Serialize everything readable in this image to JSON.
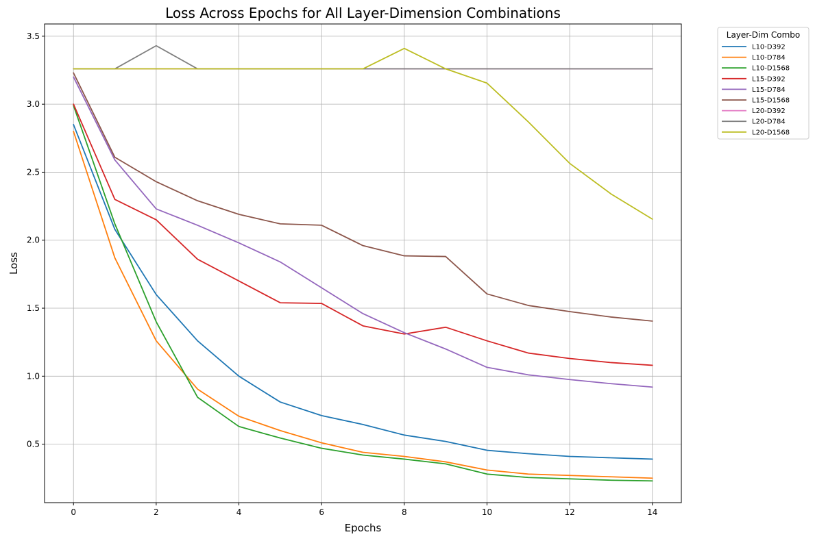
{
  "chart_data": {
    "type": "line",
    "title": "Loss Across Epochs for All Layer-Dimension Combinations",
    "xlabel": "Epochs",
    "ylabel": "Loss",
    "xlim": [
      -0.7,
      14.7
    ],
    "ylim": [
      0.07,
      3.59
    ],
    "x_ticks": [
      0,
      2,
      4,
      6,
      8,
      10,
      12,
      14
    ],
    "y_ticks": [
      0.5,
      1.0,
      1.5,
      2.0,
      2.5,
      3.0,
      3.5
    ],
    "grid": true,
    "legend": {
      "title": "Layer-Dim Combo",
      "placement": "outside-top-right"
    },
    "x": [
      0,
      1,
      2,
      3,
      4,
      5,
      6,
      7,
      8,
      9,
      10,
      11,
      12,
      13,
      14
    ],
    "series": [
      {
        "name": "L10-D392",
        "color": "#1f77b4",
        "values": [
          2.85,
          2.08,
          1.6,
          1.26,
          1.0,
          0.81,
          0.71,
          0.645,
          0.567,
          0.52,
          0.455,
          0.43,
          0.41,
          0.4,
          0.39
        ]
      },
      {
        "name": "L10-D784",
        "color": "#ff7f0e",
        "values": [
          2.8,
          1.87,
          1.26,
          0.905,
          0.705,
          0.6,
          0.51,
          0.44,
          0.41,
          0.37,
          0.31,
          0.28,
          0.27,
          0.26,
          0.25
        ]
      },
      {
        "name": "L10-D1568",
        "color": "#2ca02c",
        "values": [
          2.99,
          2.12,
          1.4,
          0.845,
          0.63,
          0.545,
          0.47,
          0.42,
          0.39,
          0.355,
          0.28,
          0.255,
          0.245,
          0.235,
          0.23
        ]
      },
      {
        "name": "L15-D392",
        "color": "#d62728",
        "values": [
          3.0,
          2.3,
          2.15,
          1.86,
          1.7,
          1.54,
          1.535,
          1.37,
          1.31,
          1.36,
          1.26,
          1.17,
          1.13,
          1.1,
          1.08
        ]
      },
      {
        "name": "L15-D784",
        "color": "#9467bd",
        "values": [
          3.2,
          2.59,
          2.23,
          2.11,
          1.98,
          1.84,
          1.65,
          1.46,
          1.32,
          1.2,
          1.065,
          1.01,
          0.975,
          0.945,
          0.92
        ]
      },
      {
        "name": "L15-D1568",
        "color": "#8c564b",
        "values": [
          3.23,
          2.61,
          2.43,
          2.29,
          2.19,
          2.12,
          2.11,
          1.96,
          1.885,
          1.88,
          1.605,
          1.52,
          1.475,
          1.435,
          1.405
        ]
      },
      {
        "name": "L20-D392",
        "color": "#e377c2",
        "values": [
          3.26,
          3.26,
          3.26,
          3.26,
          3.26,
          3.26,
          3.26,
          3.26,
          3.26,
          3.26,
          3.26,
          3.26,
          3.26,
          3.26,
          3.26
        ]
      },
      {
        "name": "L20-D784",
        "color": "#7f7f7f",
        "values": [
          3.26,
          3.26,
          3.43,
          3.26,
          3.26,
          3.26,
          3.26,
          3.26,
          3.26,
          3.26,
          3.26,
          3.26,
          3.26,
          3.26,
          3.26
        ]
      },
      {
        "name": "L20-D1568",
        "color": "#bcbd22",
        "values": [
          3.26,
          3.26,
          3.26,
          3.26,
          3.26,
          3.26,
          3.26,
          3.26,
          3.41,
          3.26,
          3.155,
          2.87,
          2.565,
          2.34,
          2.155
        ]
      }
    ]
  }
}
